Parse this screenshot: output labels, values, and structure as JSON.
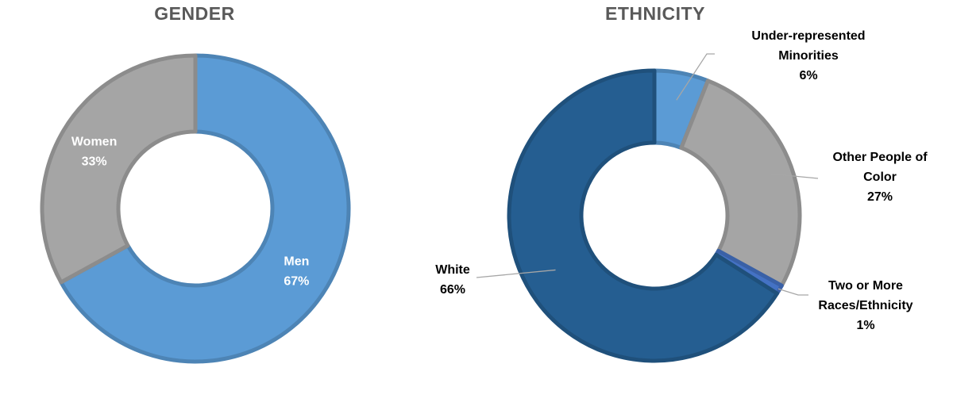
{
  "chart_data": [
    {
      "type": "pie",
      "title": "GENDER",
      "slices": [
        {
          "label": "Men",
          "value": 67,
          "display": "67%",
          "color": "#5B9BD5"
        },
        {
          "label": "Women",
          "value": 33,
          "display": "33%",
          "color": "#A5A5A5"
        }
      ]
    },
    {
      "type": "pie",
      "title": "ETHNICITY",
      "slices": [
        {
          "label": [
            "Under-represented",
            "Minorities"
          ],
          "value": 6,
          "display": "6%",
          "color": "#5B9BD5"
        },
        {
          "label": [
            "Other People of",
            "Color"
          ],
          "value": 27,
          "display": "27%",
          "color": "#A5A5A5"
        },
        {
          "label": [
            "Two or More",
            "Races/Ethnicity"
          ],
          "value": 1,
          "display": "1%",
          "color": "#4472C4"
        },
        {
          "label": [
            "White"
          ],
          "value": 66,
          "display": "66%",
          "color": "#255E91"
        }
      ]
    }
  ]
}
